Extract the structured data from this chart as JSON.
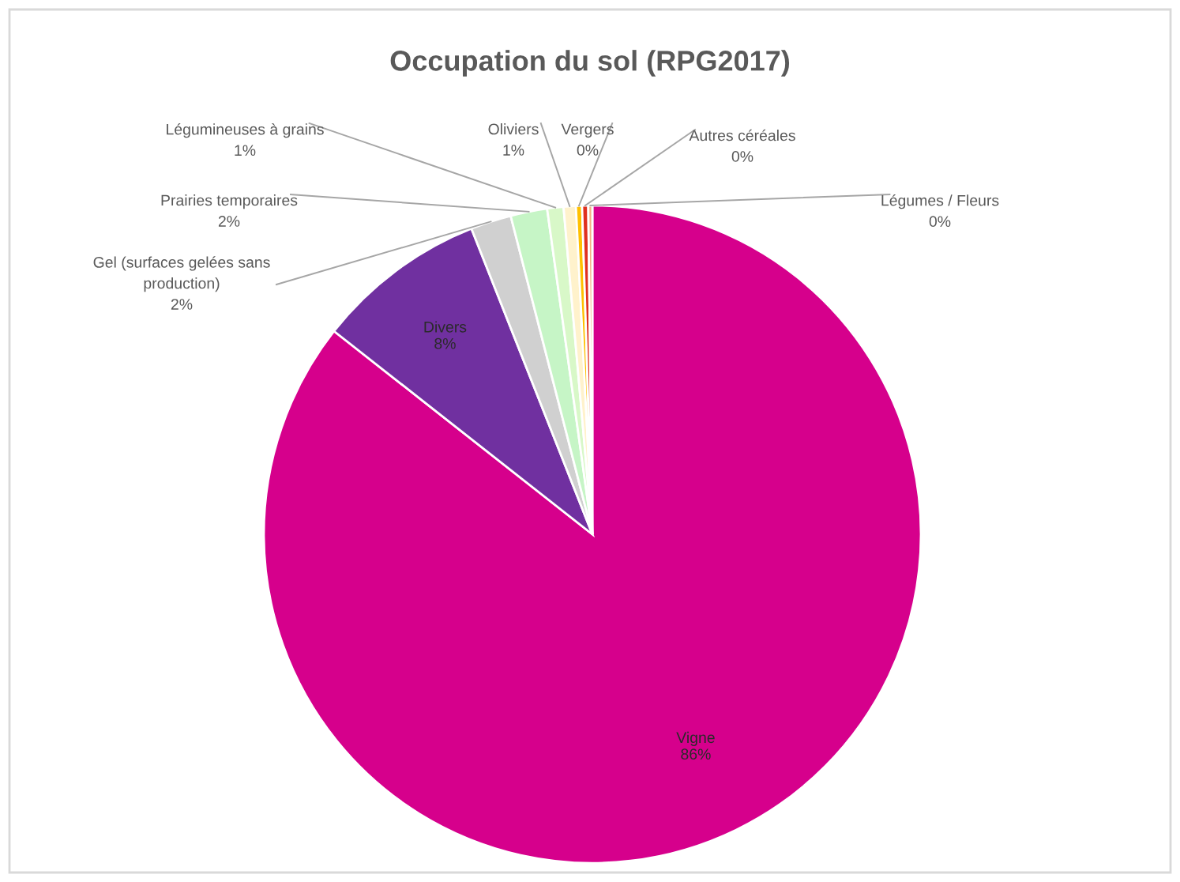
{
  "chart_data": {
    "type": "pie",
    "title": "Occupation du sol (RPG2017)",
    "categories": [
      "Vigne",
      "Divers",
      "Gel (surfaces gelées sans production)",
      "Prairies temporaires",
      "Légumineuses à grains",
      "Oliviers",
      "Vergers",
      "Autres céréales",
      "Légumes / Fleurs"
    ],
    "values": [
      85.6,
      8.4,
      2.0,
      1.8,
      0.8,
      0.6,
      0.3,
      0.3,
      0.2
    ],
    "value_labels": [
      "86%",
      "8%",
      "2%",
      "2%",
      "1%",
      "1%",
      "0%",
      "0%",
      "0%"
    ],
    "colors": [
      "#d6008c",
      "#7030a0",
      "#d0d0d0",
      "#c6f5c6",
      "#d8f8c8",
      "#fff2cc",
      "#ffc000",
      "#e03020",
      "#f4b183"
    ]
  }
}
